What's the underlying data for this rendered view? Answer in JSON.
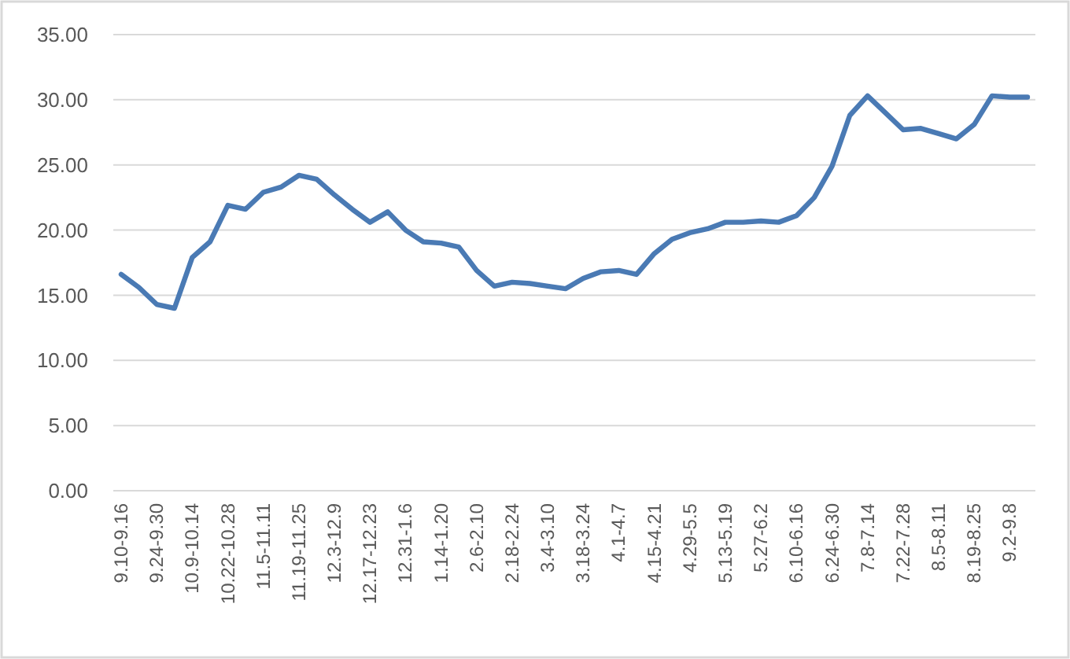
{
  "chart_data": {
    "type": "line",
    "categories": [
      "9.10-9.16",
      null,
      "9.24-9.30",
      null,
      "10.9-10.14",
      null,
      "10.22-10.28",
      null,
      "11.5-11.11",
      null,
      "11.19-11.25",
      null,
      "12.3-12.9",
      null,
      "12.17-12.23",
      null,
      "12.31-1.6",
      null,
      "1.14-1.20",
      null,
      "2.6-2.10",
      null,
      "2.18-2.24",
      null,
      "3.4-3.10",
      null,
      "3.18-3.24",
      null,
      "4.1-4.7",
      null,
      "4.15-4.21",
      null,
      "4.29-5.5",
      null,
      "5.13-5.19",
      null,
      "5.27-6.2",
      null,
      "6.10-6.16",
      null,
      "6.24-6.30",
      null,
      "7.8-7.14",
      null,
      "7.22-7.28",
      null,
      "8.5-8.11",
      null,
      "8.19-8.25",
      null,
      "9.2-9.8",
      null
    ],
    "series": [
      {
        "color": "#4a7ab4",
        "values": [
          16.6,
          15.6,
          14.3,
          14.0,
          17.9,
          19.1,
          21.9,
          21.6,
          22.9,
          23.3,
          24.2,
          23.9,
          22.7,
          21.6,
          20.6,
          21.4,
          20.0,
          19.1,
          19.0,
          18.7,
          16.9,
          15.7,
          16.0,
          15.9,
          15.7,
          15.5,
          16.3,
          16.8,
          16.9,
          16.6,
          18.2,
          19.3,
          19.8,
          20.1,
          20.6,
          20.6,
          20.7,
          20.6,
          21.1,
          22.5,
          24.9,
          28.8,
          30.3,
          29.0,
          27.7,
          27.8,
          27.4,
          27.0,
          28.1,
          30.3,
          30.2,
          30.2
        ]
      }
    ],
    "ylim": [
      0,
      35
    ],
    "yticks": [
      {
        "value": 0,
        "label": "0.00"
      },
      {
        "value": 5,
        "label": "5.00"
      },
      {
        "value": 10,
        "label": "10.00"
      },
      {
        "value": 15,
        "label": "15.00"
      },
      {
        "value": 20,
        "label": "20.00"
      },
      {
        "value": 25,
        "label": "25.00"
      },
      {
        "value": 30,
        "label": "30.00"
      },
      {
        "value": 35,
        "label": "35.00"
      }
    ],
    "grid": "y",
    "marker": "none",
    "line_style": "solid"
  }
}
